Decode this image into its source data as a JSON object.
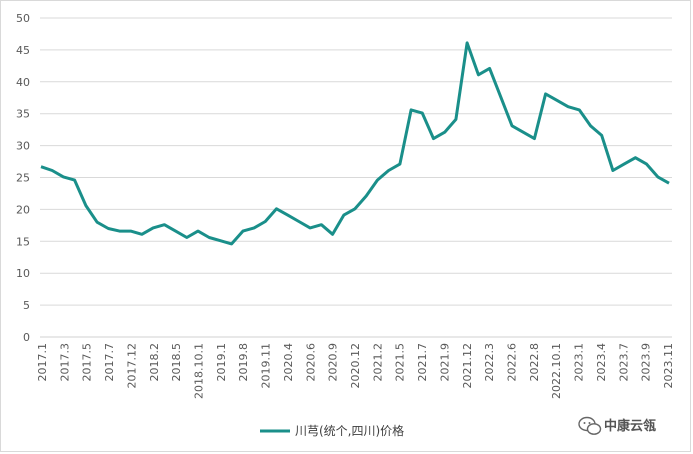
{
  "chart_data": {
    "type": "line",
    "title": "",
    "xlabel": "",
    "ylabel": "",
    "ylim": [
      0,
      50
    ],
    "yticks": [
      0,
      5,
      10,
      15,
      20,
      25,
      30,
      35,
      40,
      45,
      50
    ],
    "grid": true,
    "legend_position": "bottom",
    "x_tick_labels": [
      "2017.1",
      "2017.3",
      "2017.5",
      "2017.7",
      "2017.12",
      "2018.2",
      "2018.5",
      "2018.10.1",
      "2019.1",
      "2019.8",
      "2019.11",
      "2020.4",
      "2020.6",
      "2020.9",
      "2020.12",
      "2021.2",
      "2021.5",
      "2021.7",
      "2021.9",
      "2021.12",
      "2022.3",
      "2022.6",
      "2022.8",
      "2022.10.1",
      "2023.1",
      "2023.4",
      "2023.7",
      "2023.9",
      "2023.11"
    ],
    "series": [
      {
        "name": "川芎(统个,四川)价格",
        "color": "#1a8f8a",
        "values": [
          26.7,
          26.1,
          25.1,
          24.6,
          20.6,
          18.0,
          17.0,
          16.6,
          16.6,
          16.1,
          17.1,
          17.6,
          16.6,
          15.6,
          16.6,
          15.6,
          15.1,
          14.6,
          16.6,
          17.1,
          18.1,
          20.1,
          19.1,
          18.1,
          17.1,
          17.6,
          16.1,
          19.1,
          20.1,
          22.1,
          24.6,
          26.1,
          27.1,
          35.6,
          35.1,
          31.1,
          32.1,
          34.1,
          46.1,
          41.1,
          42.1,
          37.6,
          33.1,
          32.1,
          31.1,
          38.1,
          37.1,
          36.1,
          35.6,
          33.1,
          31.6,
          26.1,
          27.1,
          28.1,
          27.1,
          25.1,
          24.1
        ]
      }
    ]
  },
  "watermark": {
    "text": "中康云瓴",
    "icon": "wechat-icon"
  }
}
